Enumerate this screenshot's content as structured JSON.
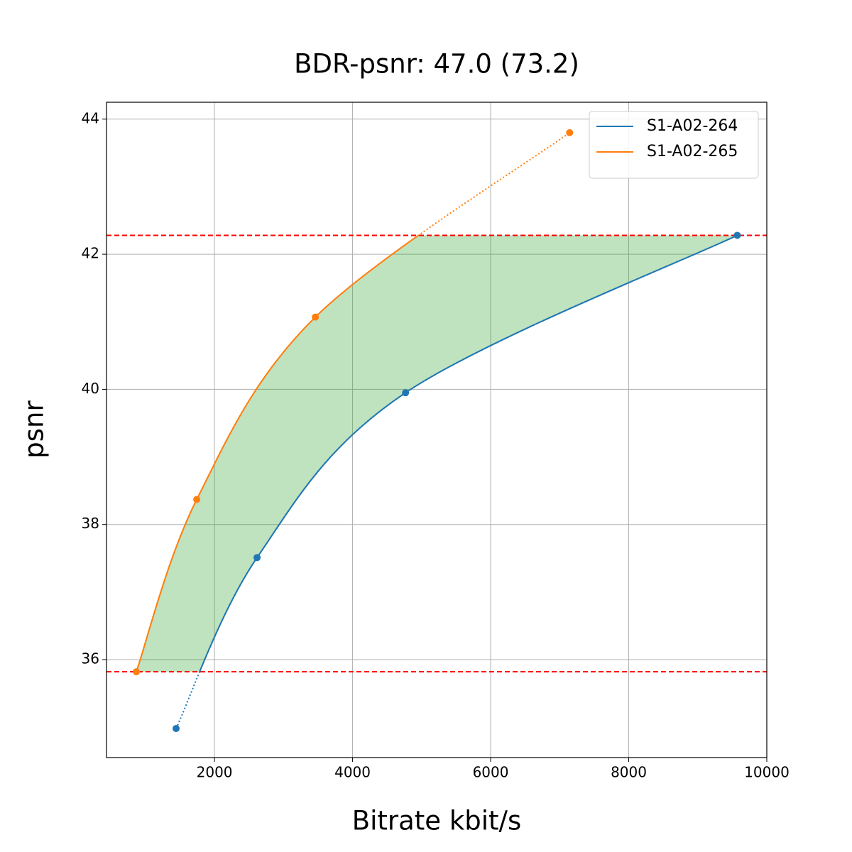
{
  "chart_data": {
    "type": "line",
    "title": "BDR-psnr: 47.0 (73.2)",
    "xlabel": "Bitrate kbit/s",
    "ylabel": "psnr",
    "xlim": [
      436,
      10000
    ],
    "ylim": [
      34.55,
      44.25
    ],
    "xticks": [
      2000,
      4000,
      6000,
      8000,
      10000
    ],
    "yticks": [
      36,
      38,
      40,
      42,
      44
    ],
    "grid": true,
    "legend": "upper right",
    "fill_color": "#2ca02c",
    "hlines": [
      42.28,
      35.82
    ],
    "hline_color": "#ff0000",
    "series": [
      {
        "name": "S1-A02-264",
        "color": "#1f77b4",
        "x": [
          1444,
          2617,
          4767,
          9572
        ],
        "values": [
          34.98,
          37.51,
          39.95,
          42.28
        ]
      },
      {
        "name": "S1-A02-265",
        "color": "#ff7f0e",
        "x": [
          868,
          1743,
          3461,
          7144
        ],
        "values": [
          35.82,
          38.37,
          41.07,
          43.8
        ]
      }
    ]
  }
}
